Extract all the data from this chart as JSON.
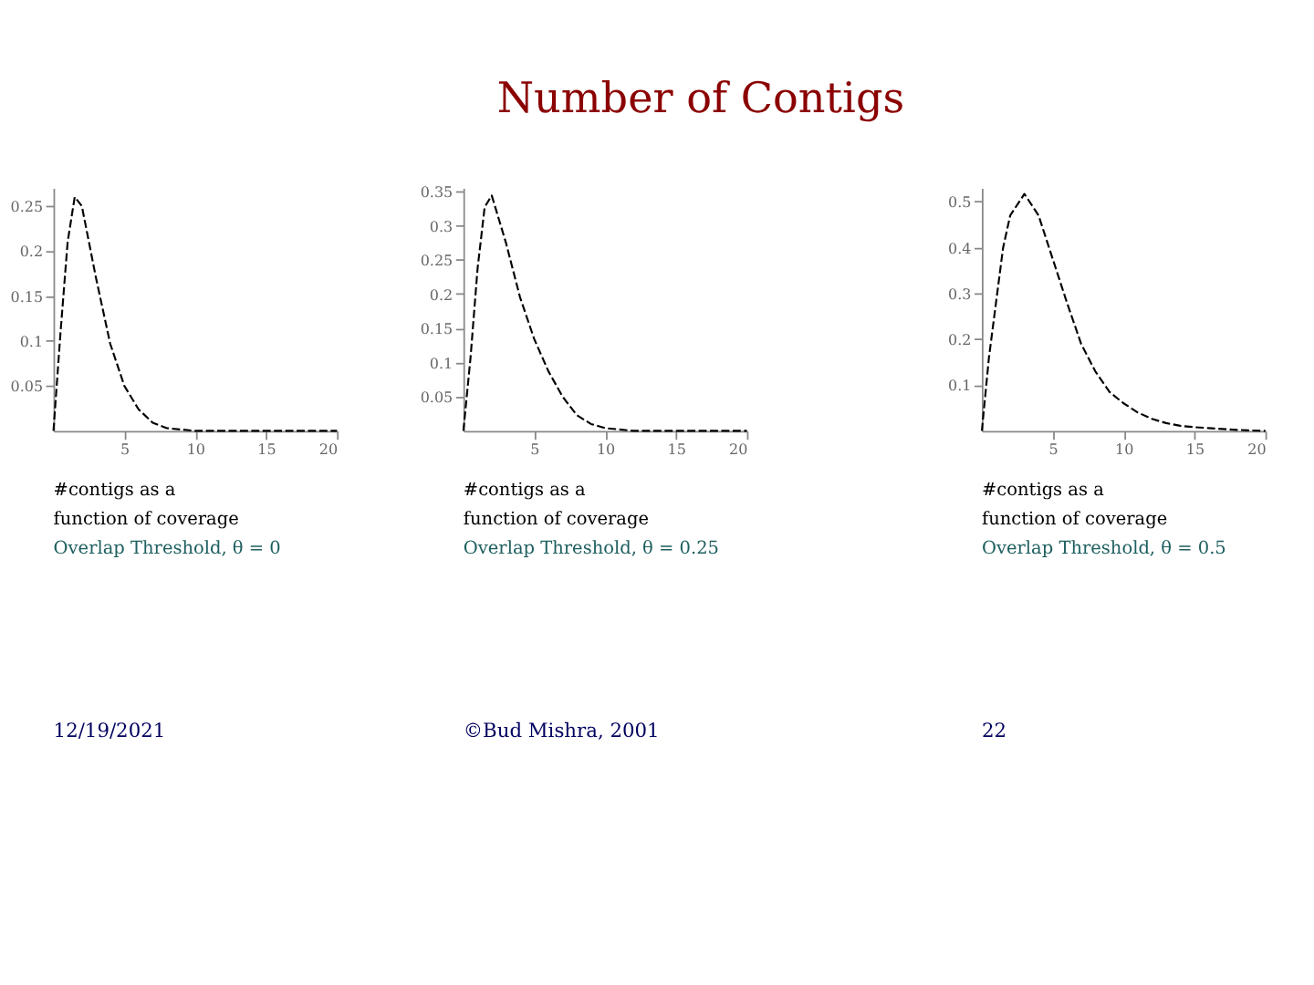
{
  "chart_data": [
    {
      "type": "line",
      "x": [
        0,
        0.5,
        1,
        1.5,
        2,
        3,
        4,
        5,
        6,
        7,
        8,
        10,
        12,
        15,
        20
      ],
      "series": [
        {
          "color": "#000000",
          "line_style": "dashed",
          "values": [
            0,
            0.11,
            0.21,
            0.26,
            0.25,
            0.17,
            0.097,
            0.05,
            0.024,
            0.009,
            0.003,
            0,
            0,
            0,
            0
          ]
        }
      ],
      "xlim": [
        0,
        20
      ],
      "xticks": [
        5,
        10,
        15,
        20
      ],
      "ylim": [
        0,
        0.27
      ],
      "yticks": [
        0.05,
        0.1,
        0.15,
        0.2,
        0.25
      ],
      "grid": false,
      "annotations": [
        "#contigs as a function of coverage",
        "Overlap Threshold, θ = 0",
        "12/19/2021"
      ]
    },
    {
      "type": "line",
      "title": "Number of Contigs",
      "x": [
        0,
        0.5,
        1,
        1.5,
        2,
        3,
        4,
        5,
        6,
        7,
        8,
        9,
        10,
        12,
        15,
        20
      ],
      "series": [
        {
          "color": "#000000",
          "line_style": "dashed",
          "values": [
            0,
            0.106,
            0.237,
            0.327,
            0.344,
            0.275,
            0.195,
            0.134,
            0.087,
            0.05,
            0.023,
            0.01,
            0.004,
            0,
            0,
            0
          ]
        }
      ],
      "xlim": [
        0,
        20
      ],
      "xticks": [
        5,
        10,
        15,
        20
      ],
      "ylim": [
        0,
        0.355
      ],
      "yticks": [
        0.05,
        0.1,
        0.15,
        0.2,
        0.25,
        0.3,
        0.35
      ],
      "grid": false,
      "annotations": [
        "#contigs as a function of coverage",
        "Overlap Threshold, θ = 0.25",
        "©Bud Mishra, 2001"
      ]
    },
    {
      "type": "line",
      "x": [
        0,
        0.5,
        1,
        1.5,
        2,
        3,
        4,
        5,
        6,
        7,
        8,
        9,
        10,
        11,
        12,
        13,
        14,
        15,
        16,
        18,
        20
      ],
      "series": [
        {
          "color": "#000000",
          "line_style": "dashed",
          "values": [
            0,
            0.16,
            0.28,
            0.4,
            0.47,
            0.517,
            0.47,
            0.375,
            0.28,
            0.19,
            0.13,
            0.085,
            0.06,
            0.04,
            0.026,
            0.017,
            0.011,
            0.008,
            0.006,
            0.002,
            0
          ]
        }
      ],
      "xlim": [
        0,
        20
      ],
      "xticks": [
        5,
        10,
        15,
        20
      ],
      "ylim": [
        0,
        0.53
      ],
      "yticks": [
        0.1,
        0.2,
        0.3,
        0.4,
        0.5
      ],
      "grid": false,
      "annotations": [
        "#contigs as a function of coverage",
        "Overlap Threshold, θ = 0.5",
        "22"
      ]
    }
  ]
}
